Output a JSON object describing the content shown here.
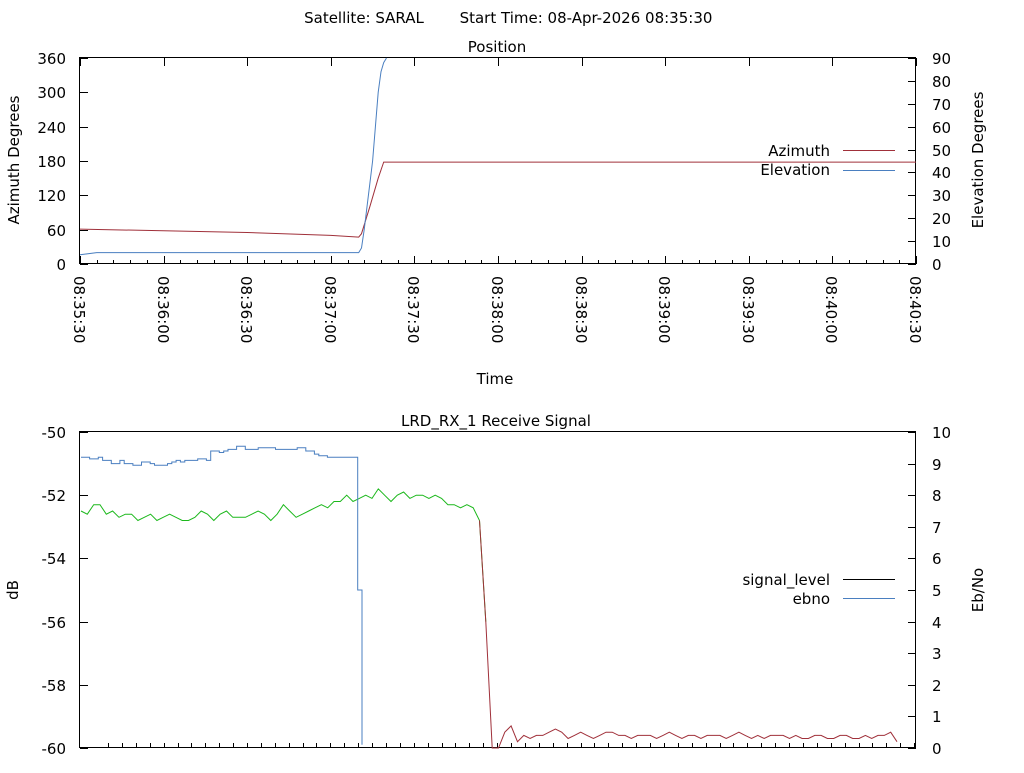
{
  "header": {
    "satellite_label": "Satellite: SARAL",
    "start_time_label": "Start Time: 08-Apr-2026 08:35:30"
  },
  "colors": {
    "azimuth": "#a0303a",
    "elevation": "#4a7fc0",
    "signal_level_legend": "#000000",
    "ebno": "#4a7fc0",
    "signal_green": "#1cb81c",
    "signal_red": "#a0303a"
  },
  "chart_data": [
    {
      "type": "line",
      "title": "Position",
      "xlabel": "Time",
      "ylabel": "Azimuth Degrees",
      "y2label": "Elevation Degrees",
      "xlim": [
        "08:35:30",
        "08:40:30"
      ],
      "ylim": [
        0,
        360
      ],
      "y2lim": [
        0,
        90
      ],
      "x_ticks": [
        "08:35:30",
        "08:36:00",
        "08:36:30",
        "08:37:00",
        "08:37:30",
        "08:38:00",
        "08:38:30",
        "08:39:00",
        "08:39:30",
        "08:40:00",
        "08:40:30"
      ],
      "y_ticks": [
        0,
        60,
        120,
        180,
        240,
        300,
        360
      ],
      "y2_ticks": [
        0,
        10,
        20,
        30,
        40,
        50,
        60,
        70,
        80,
        90
      ],
      "legend_position": "right",
      "series": [
        {
          "name": "Azimuth",
          "axis": "left",
          "points": [
            [
              "08:35:30",
              61
            ],
            [
              "08:36:00",
              58
            ],
            [
              "08:36:30",
              55
            ],
            [
              "08:37:00",
              50
            ],
            [
              "08:37:10",
              47
            ],
            [
              "08:37:11",
              53
            ],
            [
              "08:37:14",
              100
            ],
            [
              "08:37:17",
              150
            ],
            [
              "08:37:19",
              178
            ],
            [
              "08:37:30",
              178
            ],
            [
              "08:40:30",
              178
            ]
          ]
        },
        {
          "name": "Elevation",
          "axis": "right",
          "points": [
            [
              "08:35:30",
              4
            ],
            [
              "08:35:36",
              5
            ],
            [
              "08:37:10",
              5
            ],
            [
              "08:37:11",
              7
            ],
            [
              "08:37:12",
              15
            ],
            [
              "08:37:13",
              25
            ],
            [
              "08:37:14",
              35
            ],
            [
              "08:37:15",
              45
            ],
            [
              "08:37:16",
              60
            ],
            [
              "08:37:17",
              75
            ],
            [
              "08:37:18",
              84
            ],
            [
              "08:37:19",
              88
            ],
            [
              "08:37:20",
              90
            ]
          ]
        }
      ]
    },
    {
      "type": "line",
      "title": "LRD_RX_1 Receive Signal",
      "xlabel": "",
      "ylabel": "dB",
      "y2label": "Eb/No",
      "ylim": [
        -60,
        -50
      ],
      "y2lim": [
        0,
        10
      ],
      "y_ticks": [
        -60,
        -58,
        -56,
        -54,
        -52,
        -50
      ],
      "y2_ticks": [
        0,
        1,
        2,
        3,
        4,
        5,
        6,
        7,
        8,
        9,
        10
      ],
      "legend_position": "right",
      "series": [
        {
          "name": "signal_level",
          "axis": "left",
          "values": [
            -52.5,
            -52.6,
            -52.3,
            -52.3,
            -52.6,
            -52.5,
            -52.7,
            -52.6,
            -52.6,
            -52.8,
            -52.7,
            -52.6,
            -52.8,
            -52.7,
            -52.6,
            -52.7,
            -52.8,
            -52.8,
            -52.7,
            -52.5,
            -52.6,
            -52.8,
            -52.6,
            -52.5,
            -52.7,
            -52.7,
            -52.7,
            -52.6,
            -52.5,
            -52.6,
            -52.8,
            -52.6,
            -52.3,
            -52.5,
            -52.7,
            -52.6,
            -52.5,
            -52.4,
            -52.3,
            -52.4,
            -52.2,
            -52.2,
            -52.0,
            -52.2,
            -52.1,
            -52.0,
            -52.1,
            -51.8,
            -52.0,
            -52.2,
            -52.0,
            -51.9,
            -52.1,
            -52.0,
            -52.0,
            -52.1,
            -52.0,
            -52.1,
            -52.3,
            -52.3,
            -52.4,
            -52.3,
            -52.4,
            -52.8,
            -56.0,
            -60.0,
            -60.0,
            -59.5,
            -59.3,
            -59.8,
            -59.6,
            -59.7,
            -59.6,
            -59.6,
            -59.5,
            -59.4,
            -59.5,
            -59.7,
            -59.6,
            -59.5,
            -59.6,
            -59.7,
            -59.6,
            -59.5,
            -59.5,
            -59.6,
            -59.6,
            -59.7,
            -59.6,
            -59.6,
            -59.6,
            -59.7,
            -59.6,
            -59.5,
            -59.6,
            -59.7,
            -59.6,
            -59.6,
            -59.7,
            -59.6,
            -59.6,
            -59.6,
            -59.7,
            -59.6,
            -59.5,
            -59.6,
            -59.7,
            -59.6,
            -59.7,
            -59.6,
            -59.6,
            -59.6,
            -59.7,
            -59.6,
            -59.7,
            -59.7,
            -59.6,
            -59.6,
            -59.7,
            -59.7,
            -59.6,
            -59.6,
            -59.7,
            -59.7,
            -59.6,
            -59.7,
            -59.6,
            -59.6,
            -59.5,
            -59.8
          ]
        },
        {
          "name": "ebno",
          "axis": "right",
          "values": [
            9.2,
            9.2,
            9.15,
            9.15,
            9.2,
            9.1,
            9.1,
            9.0,
            9.0,
            9.1,
            9.0,
            9.0,
            8.95,
            8.95,
            9.05,
            9.05,
            9.0,
            8.95,
            8.95,
            8.95,
            9.0,
            9.05,
            9.1,
            9.05,
            9.1,
            9.1,
            9.1,
            9.15,
            9.15,
            9.1,
            9.4,
            9.4,
            9.35,
            9.4,
            9.45,
            9.45,
            9.55,
            9.55,
            9.45,
            9.45,
            9.45,
            9.5,
            9.5,
            9.5,
            9.5,
            9.45,
            9.45,
            9.45,
            9.45,
            9.45,
            9.5,
            9.5,
            9.4,
            9.4,
            9.3,
            9.25,
            9.25,
            9.2,
            9.2,
            9.2,
            9.2,
            9.2,
            9.2,
            9.2,
            5.0,
            0.1
          ]
        }
      ]
    }
  ]
}
